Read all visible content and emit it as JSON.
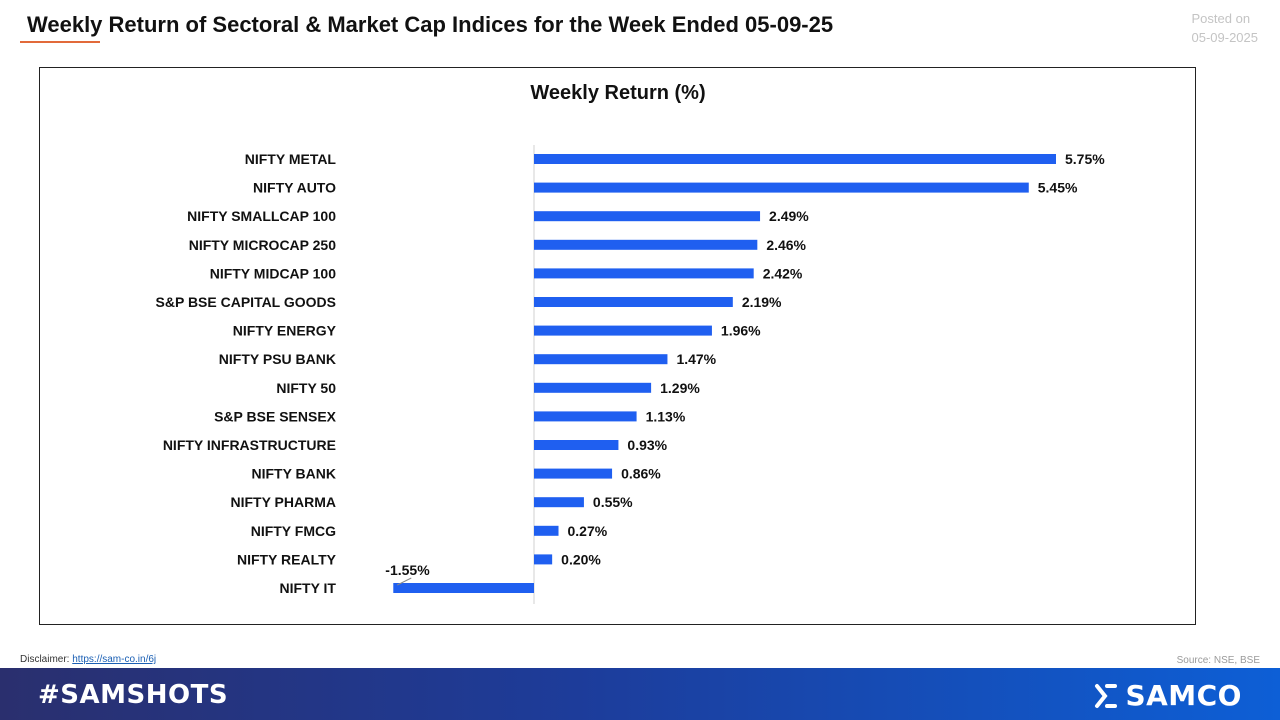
{
  "header": {
    "title": "Weekly Return of Sectoral & Market Cap Indices for the Week Ended 05-09-25",
    "posted_label": "Posted on",
    "posted_date": "05-09-2025"
  },
  "footer": {
    "disclaimer_label": "Disclaimer:",
    "disclaimer_link": "https://sam-co.in/6j",
    "source": "Source: NSE, BSE",
    "hashtag": "#SAMSHOTS",
    "brand": "SAMCO"
  },
  "colors": {
    "bar": "#1f5ff0",
    "accent": "#e26a3a",
    "footer_start": "#2a2f6e",
    "footer_end": "#0d5fd6"
  },
  "chart_data": {
    "type": "bar",
    "orientation": "horizontal",
    "title": "Weekly Return (%)",
    "categories": [
      "NIFTY METAL",
      "NIFTY AUTO",
      "NIFTY SMALLCAP 100",
      "NIFTY MICROCAP 250",
      "NIFTY MIDCAP 100",
      "S&P BSE CAPITAL GOODS",
      "NIFTY ENERGY",
      "NIFTY PSU BANK",
      "NIFTY 50",
      "S&P BSE SENSEX",
      "NIFTY INFRASTRUCTURE",
      "NIFTY BANK",
      "NIFTY PHARMA",
      "NIFTY FMCG",
      "NIFTY REALTY",
      "NIFTY IT"
    ],
    "values": [
      5.75,
      5.45,
      2.49,
      2.46,
      2.42,
      2.19,
      1.96,
      1.47,
      1.29,
      1.13,
      0.93,
      0.86,
      0.55,
      0.27,
      0.2,
      -1.55
    ],
    "data_labels": [
      "5.75%",
      "5.45%",
      "2.49%",
      "2.46%",
      "2.42%",
      "2.19%",
      "1.96%",
      "1.47%",
      "1.29%",
      "1.13%",
      "0.93%",
      "0.86%",
      "0.55%",
      "0.27%",
      "0.20%",
      "-1.55%"
    ],
    "xlim": [
      -1.55,
      5.75
    ],
    "grid": false,
    "legend": "none"
  }
}
